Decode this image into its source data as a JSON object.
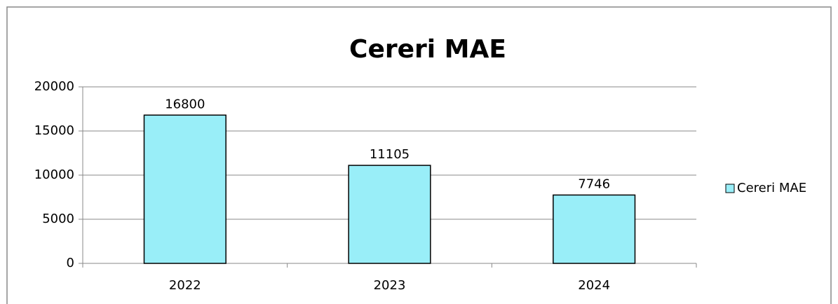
{
  "chart_data": {
    "type": "bar",
    "title": "Cereri MAE",
    "categories": [
      "2022",
      "2023",
      "2024"
    ],
    "series": [
      {
        "name": "Cereri MAE",
        "color": "#99eef8",
        "values": [
          16800,
          11105,
          7746
        ]
      }
    ],
    "ylim": [
      0,
      20000
    ],
    "yticks": [
      0,
      5000,
      10000,
      15000,
      20000
    ],
    "grid": true,
    "legend": "right",
    "data_labels": true
  }
}
